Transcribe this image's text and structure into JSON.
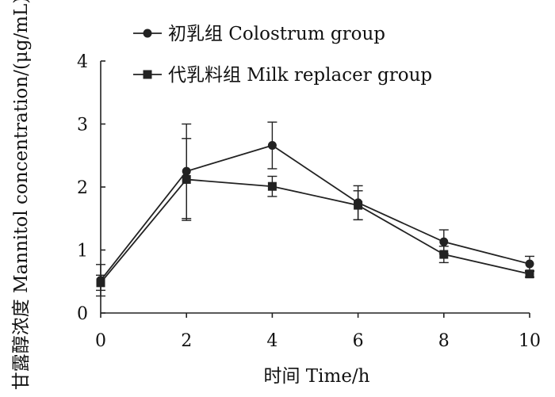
{
  "chart_data": {
    "type": "line",
    "xlabel": "时间 Time/h",
    "ylabel": "甘露醇浓度 Mannitol concentration/(μg/mL)",
    "xlim": [
      0,
      10
    ],
    "ylim": [
      0,
      4
    ],
    "xticks": [
      0,
      2,
      4,
      6,
      8,
      10
    ],
    "yticks": [
      0,
      1,
      2,
      3,
      4
    ],
    "grid": false,
    "legend_position": "top-left",
    "series": [
      {
        "name": "初乳组 Colostrum group",
        "marker": "circle",
        "color": "#222222",
        "x": [
          0,
          2,
          4,
          6,
          8,
          10
        ],
        "y": [
          0.52,
          2.25,
          2.66,
          1.75,
          1.13,
          0.78
        ],
        "error": [
          0.25,
          0.75,
          0.37,
          0.27,
          0.19,
          0.12
        ]
      },
      {
        "name": "代乳料组 Milk replacer group",
        "marker": "square",
        "color": "#222222",
        "x": [
          0,
          2,
          4,
          6,
          8,
          10
        ],
        "y": [
          0.48,
          2.12,
          2.01,
          1.71,
          0.93,
          0.62
        ],
        "error": [
          0.12,
          0.65,
          0.16,
          0.23,
          0.13,
          0.05
        ]
      }
    ]
  }
}
